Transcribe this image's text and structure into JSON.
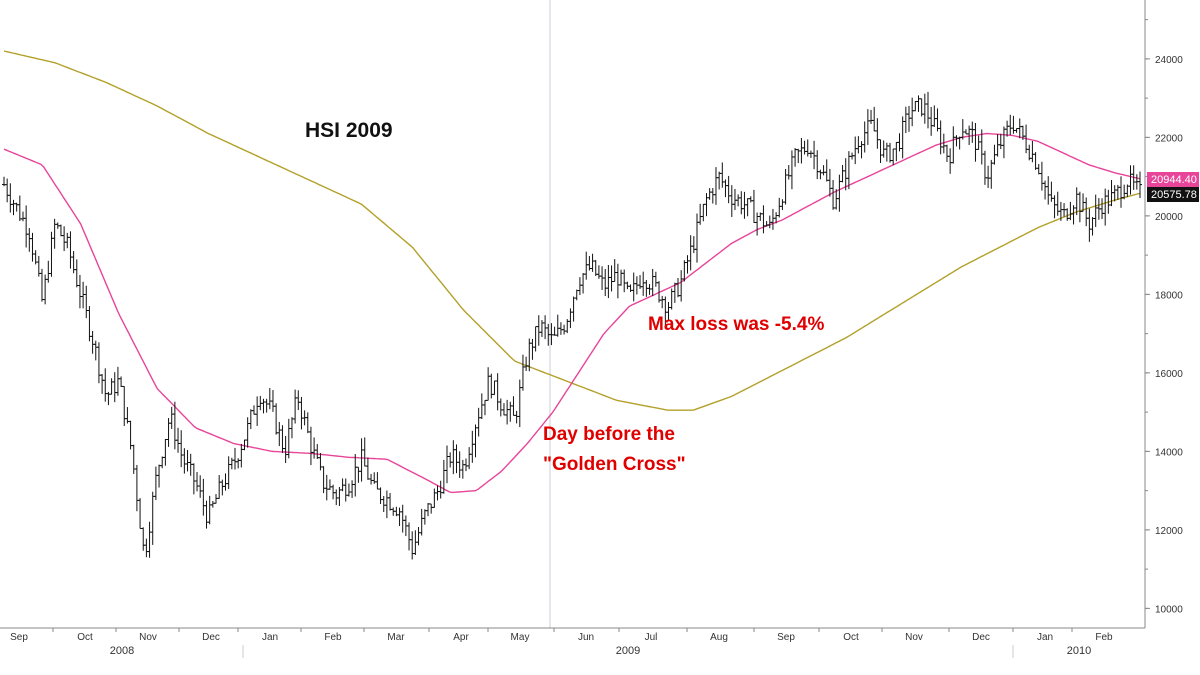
{
  "colors": {
    "price": "#111111",
    "ma50": "#e8449a",
    "ma200": "#b3a02a",
    "annotation": "#e00000",
    "grid": "#d0d0d0",
    "axis": "#888888"
  },
  "chart_data": {
    "type": "ohlc",
    "title": "HSI 2009",
    "ylim": [
      9500,
      25500
    ],
    "y_ticks": [
      10000,
      12000,
      14000,
      16000,
      18000,
      20000,
      22000,
      24000
    ],
    "y_tick_labels": [
      "10000",
      "12000",
      "14000",
      "16000",
      "18000",
      "20000",
      "22000",
      "24000"
    ],
    "month_labels": [
      "Sep",
      "Oct",
      "Nov",
      "Dec",
      "Jan",
      "Feb",
      "Mar",
      "Apr",
      "May",
      "Jun",
      "Jul",
      "Aug",
      "Sep",
      "Oct",
      "Nov",
      "Dec",
      "Jan",
      "Feb"
    ],
    "year_labels": [
      "2008",
      "2009",
      "2010"
    ],
    "last_values": {
      "ma50": "20944.40",
      "price": "20575.78"
    },
    "price_path": [
      [
        0,
        20800
      ],
      [
        1,
        20200
      ],
      [
        2,
        19600
      ],
      [
        3,
        17800
      ],
      [
        4,
        19800
      ],
      [
        5,
        19200
      ],
      [
        6,
        18000
      ],
      [
        7,
        16800
      ],
      [
        8,
        15400
      ],
      [
        9,
        15800
      ],
      [
        10,
        14000
      ],
      [
        11,
        11300
      ],
      [
        12,
        13500
      ],
      [
        13,
        14900
      ],
      [
        14,
        13800
      ],
      [
        15,
        13200
      ],
      [
        16,
        12300
      ],
      [
        17,
        13100
      ],
      [
        18,
        13700
      ],
      [
        19,
        14500
      ],
      [
        20,
        15500
      ],
      [
        21,
        15000
      ],
      [
        22,
        14000
      ],
      [
        23,
        15400
      ],
      [
        24,
        14200
      ],
      [
        25,
        13200
      ],
      [
        26,
        12900
      ],
      [
        27,
        13200
      ],
      [
        28,
        13800
      ],
      [
        29,
        13000
      ],
      [
        30,
        12800
      ],
      [
        31,
        12500
      ],
      [
        32,
        11500
      ],
      [
        33,
        12400
      ],
      [
        34,
        13000
      ],
      [
        35,
        13900
      ],
      [
        36,
        13600
      ],
      [
        37,
        14800
      ],
      [
        38,
        15800
      ],
      [
        39,
        15200
      ],
      [
        40,
        14800
      ],
      [
        41,
        16500
      ],
      [
        42,
        17200
      ],
      [
        43,
        16800
      ],
      [
        44,
        17300
      ],
      [
        45,
        18400
      ],
      [
        46,
        18700
      ],
      [
        47,
        18200
      ],
      [
        48,
        18500
      ],
      [
        49,
        17900
      ],
      [
        50,
        18500
      ],
      [
        51,
        18200
      ],
      [
        52,
        17700
      ],
      [
        53,
        18300
      ],
      [
        54,
        19300
      ],
      [
        55,
        20400
      ],
      [
        56,
        21000
      ],
      [
        57,
        20500
      ],
      [
        58,
        20300
      ],
      [
        59,
        20000
      ],
      [
        60,
        19700
      ],
      [
        61,
        20600
      ],
      [
        62,
        21500
      ],
      [
        63,
        21800
      ],
      [
        64,
        21200
      ],
      [
        65,
        20400
      ],
      [
        66,
        21200
      ],
      [
        67,
        22000
      ],
      [
        68,
        22300
      ],
      [
        69,
        21500
      ],
      [
        70,
        21800
      ],
      [
        71,
        22700
      ],
      [
        72,
        22800
      ],
      [
        73,
        22200
      ],
      [
        74,
        21500
      ],
      [
        75,
        22300
      ],
      [
        76,
        22000
      ],
      [
        77,
        21000
      ],
      [
        78,
        21800
      ],
      [
        79,
        22400
      ],
      [
        80,
        21900
      ],
      [
        81,
        21300
      ],
      [
        82,
        20300
      ],
      [
        83,
        20000
      ],
      [
        84,
        20500
      ],
      [
        85,
        19800
      ],
      [
        86,
        20300
      ],
      [
        87,
        20500
      ],
      [
        88,
        20900
      ],
      [
        89,
        20580
      ]
    ],
    "ma50_path": [
      [
        0,
        21700
      ],
      [
        3,
        21300
      ],
      [
        6,
        19800
      ],
      [
        9,
        17500
      ],
      [
        12,
        15600
      ],
      [
        15,
        14600
      ],
      [
        18,
        14200
      ],
      [
        21,
        14000
      ],
      [
        24,
        13950
      ],
      [
        27,
        13850
      ],
      [
        30,
        13800
      ],
      [
        33,
        13300
      ],
      [
        35,
        12950
      ],
      [
        37,
        13000
      ],
      [
        39,
        13500
      ],
      [
        41,
        14200
      ],
      [
        43,
        15000
      ],
      [
        45,
        16000
      ],
      [
        47,
        17000
      ],
      [
        49,
        17700
      ],
      [
        51,
        18000
      ],
      [
        53,
        18300
      ],
      [
        55,
        18800
      ],
      [
        57,
        19300
      ],
      [
        59,
        19650
      ],
      [
        61,
        19900
      ],
      [
        63,
        20250
      ],
      [
        65,
        20600
      ],
      [
        67,
        20900
      ],
      [
        69,
        21200
      ],
      [
        71,
        21500
      ],
      [
        73,
        21800
      ],
      [
        75,
        22000
      ],
      [
        77,
        22100
      ],
      [
        79,
        22050
      ],
      [
        81,
        21900
      ],
      [
        83,
        21600
      ],
      [
        85,
        21300
      ],
      [
        87,
        21100
      ],
      [
        89,
        20944
      ]
    ],
    "ma200_path": [
      [
        0,
        24200
      ],
      [
        4,
        23900
      ],
      [
        8,
        23400
      ],
      [
        12,
        22800
      ],
      [
        16,
        22100
      ],
      [
        20,
        21500
      ],
      [
        24,
        20900
      ],
      [
        28,
        20300
      ],
      [
        32,
        19200
      ],
      [
        36,
        17600
      ],
      [
        40,
        16300
      ],
      [
        44,
        15800
      ],
      [
        48,
        15300
      ],
      [
        52,
        15050
      ],
      [
        54,
        15050
      ],
      [
        57,
        15400
      ],
      [
        60,
        15900
      ],
      [
        63,
        16400
      ],
      [
        66,
        16900
      ],
      [
        69,
        17500
      ],
      [
        72,
        18100
      ],
      [
        75,
        18700
      ],
      [
        78,
        19200
      ],
      [
        81,
        19700
      ],
      [
        84,
        20100
      ],
      [
        87,
        20400
      ],
      [
        89,
        20576
      ]
    ],
    "annotations": [
      {
        "text": "Max loss was -5.4%",
        "anchor_index": 52
      },
      {
        "text": "Day before the",
        "anchor_index": 44
      },
      {
        "text": "\"Golden Cross\"",
        "anchor_index": 44
      }
    ]
  }
}
